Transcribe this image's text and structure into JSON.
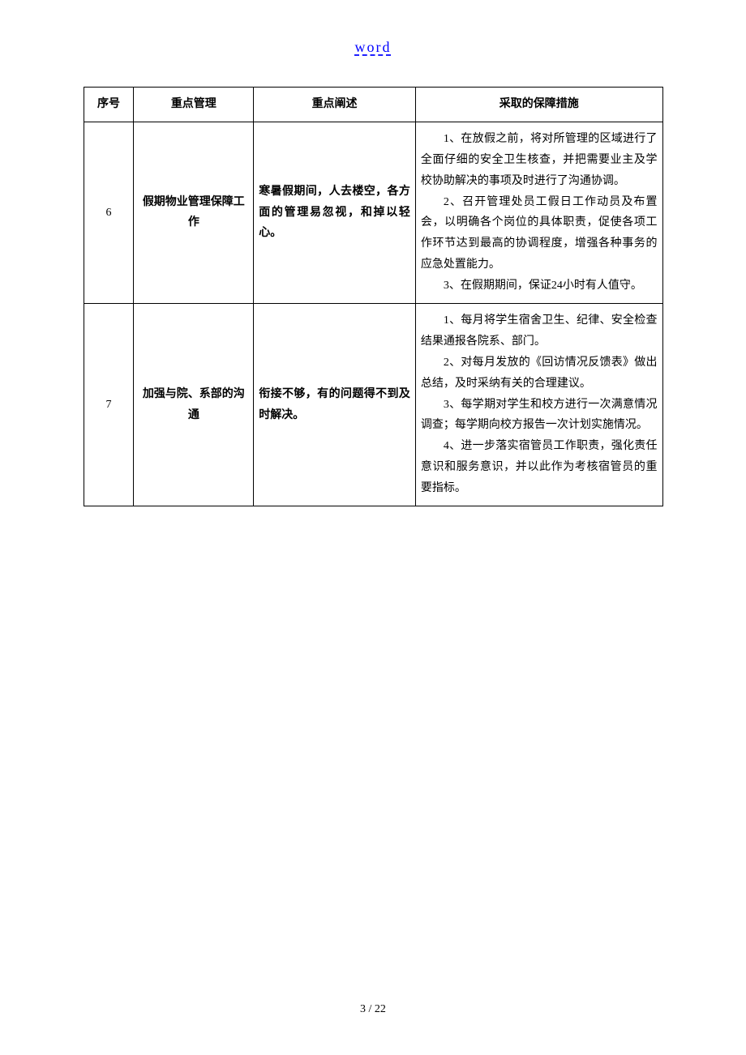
{
  "header": {
    "link_text": "word"
  },
  "table": {
    "headers": {
      "seq": "序号",
      "mgmt": "重点管理",
      "desc": "重点阐述",
      "measure": "采取的保障措施"
    },
    "rows": [
      {
        "seq": "6",
        "mgmt": "假期物业管理保障工作",
        "desc": "寒暑假期间，人去楼空，各方面的管理易忽视，和掉以轻心。",
        "measures": [
          "1、在放假之前，将对所管理的区域进行了全面仔细的安全卫生核查，并把需要业主及学校协助解决的事项及时进行了沟通协调。",
          "2、召开管理处员工假日工作动员及布置会，以明确各个岗位的具体职责，促使各项工作环节达到最高的协调程度，增强各种事务的应急处置能力。",
          "3、在假期期间，保证24小时有人值守。"
        ]
      },
      {
        "seq": "7",
        "mgmt": "加强与院、系部的沟通",
        "desc": "衔接不够，有的问题得不到及时解决。",
        "measures": [
          "1、每月将学生宿舍卫生、纪律、安全检查结果通报各院系、部门。",
          "2、对每月发放的《回访情况反馈表》做出总结，及时采纳有关的合理建议。",
          "3、每学期对学生和校方进行一次满意情况调查；每学期向校方报告一次计划实施情况。",
          "4、进一步落实宿管员工作职责，强化责任意识和服务意识，并以此作为考核宿管员的重要指标。"
        ]
      }
    ]
  },
  "footer": {
    "page_info": "3 / 22"
  }
}
